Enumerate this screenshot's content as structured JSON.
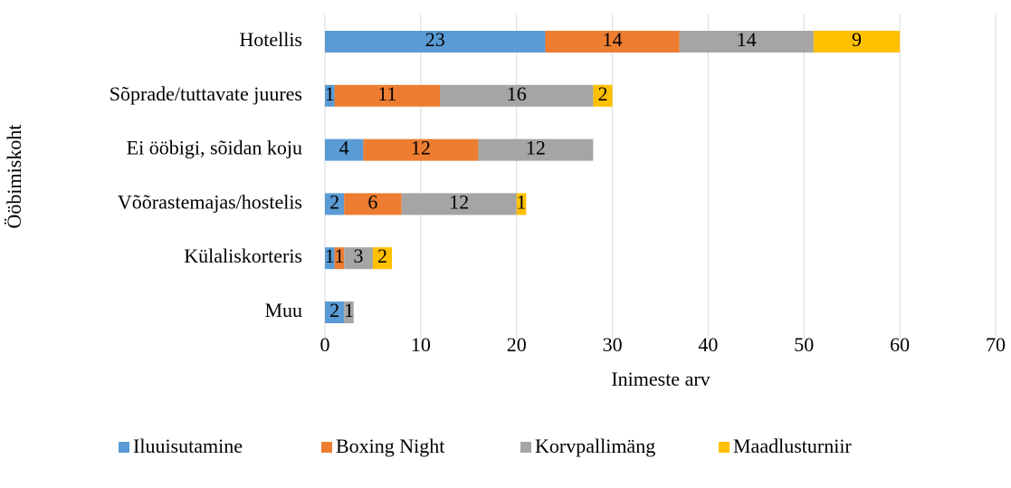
{
  "chart_data": {
    "type": "stacked-barh",
    "xlabel": "Inimeste arv",
    "ylabel": "Ööbimiskoht",
    "categories": [
      "Hotellis",
      "Sõprade/tuttavate juures",
      "Ei ööbigi, sõidan koju",
      "Võõrastemajas/hostelis",
      "Külaliskorteris",
      "Muu"
    ],
    "series": [
      {
        "name": "Iluuisutamine",
        "color": "#5b9bd5",
        "values": [
          23,
          1,
          4,
          2,
          1,
          2
        ]
      },
      {
        "name": "Boxing Night",
        "color": "#ed7d31",
        "values": [
          14,
          11,
          12,
          6,
          1,
          0
        ]
      },
      {
        "name": "Korvpallimäng",
        "color": "#a5a5a5",
        "values": [
          14,
          16,
          12,
          12,
          3,
          1
        ]
      },
      {
        "name": "Maadlusturniir",
        "color": "#ffc000",
        "values": [
          9,
          2,
          0,
          1,
          2,
          0
        ]
      }
    ],
    "xlim": [
      0,
      70
    ],
    "xticks": [
      0,
      10,
      20,
      30,
      40,
      50,
      60,
      70
    ],
    "grid": true,
    "legend": "bottom"
  }
}
